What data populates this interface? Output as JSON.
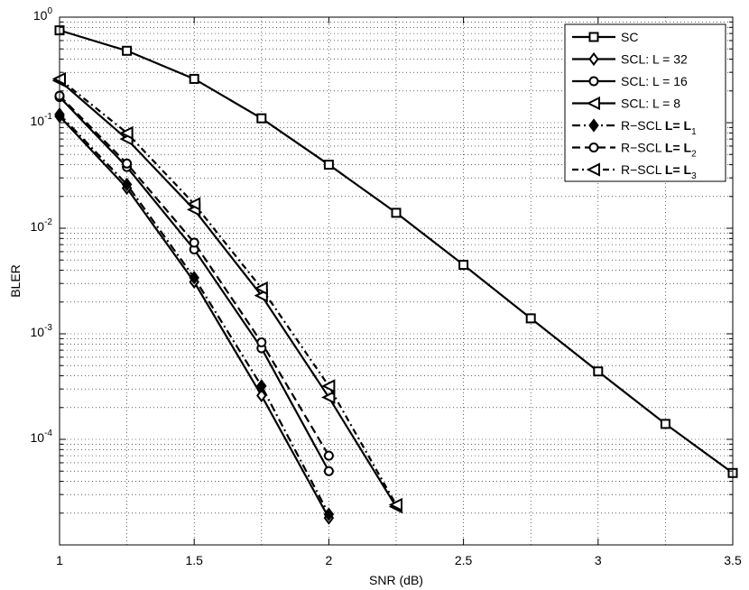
{
  "chart_data": {
    "type": "line",
    "xlabel": "SNR (dB)",
    "ylabel": "BLER",
    "xlim": [
      1,
      3.5
    ],
    "ylim": [
      1e-05,
      1
    ],
    "yscale": "log",
    "grid": true,
    "legend_position": "top-right",
    "xticks": [
      1,
      1.5,
      2,
      2.5,
      3,
      3.5
    ],
    "xtick_labels": [
      "1",
      "1.5",
      "2",
      "2.5",
      "3",
      "3.5"
    ],
    "yticks": [
      {
        "value": 1,
        "base": "10",
        "exp": "0"
      },
      {
        "value": 0.1,
        "base": "10",
        "exp": "-1"
      },
      {
        "value": 0.01,
        "base": "10",
        "exp": "-2"
      },
      {
        "value": 0.001,
        "base": "10",
        "exp": "-3"
      },
      {
        "value": 0.0001,
        "base": "10",
        "exp": "-4"
      }
    ],
    "series": [
      {
        "name": "SC",
        "legend": {
          "text": "SC"
        },
        "marker": "square",
        "dash": "solid",
        "filled": false,
        "x": [
          1,
          1.25,
          1.5,
          1.75,
          2,
          2.25,
          2.5,
          2.75,
          3,
          3.25,
          3.5
        ],
        "y": [
          0.75,
          0.48,
          0.26,
          0.11,
          0.04,
          0.014,
          0.0045,
          0.0014,
          0.00044,
          0.00014,
          4.8e-05
        ]
      },
      {
        "name": "SCL: L = 32",
        "legend": {
          "text": "SCL: L = 32"
        },
        "marker": "diamond",
        "dash": "solid",
        "filled": false,
        "x": [
          1,
          1.25,
          1.5,
          1.75,
          2
        ],
        "y": [
          0.115,
          0.024,
          0.0031,
          0.00026,
          1.8e-05
        ]
      },
      {
        "name": "SCL: L = 16",
        "legend": {
          "text": "SCL: L = 16"
        },
        "marker": "circle",
        "dash": "solid",
        "filled": false,
        "x": [
          1,
          1.25,
          1.5,
          1.75,
          2
        ],
        "y": [
          0.175,
          0.038,
          0.0063,
          0.00073,
          5e-05
        ]
      },
      {
        "name": "SCL: L = 8",
        "legend": {
          "text": "SCL: L = 8"
        },
        "marker": "triangle-left",
        "dash": "solid",
        "filled": false,
        "x": [
          1,
          1.25,
          1.5,
          1.75,
          2,
          2.25
        ],
        "y": [
          0.25,
          0.07,
          0.015,
          0.0023,
          0.00025,
          2.3e-05
        ]
      },
      {
        "name": "R-SCL L=L1",
        "legend": {
          "prefix": "R−SCL",
          "eq": "L= ",
          "sym": "L",
          "sub": "1"
        },
        "marker": "diamond",
        "dash": "dashdot",
        "filled": true,
        "x": [
          1,
          1.25,
          1.5,
          1.75,
          2
        ],
        "y": [
          0.12,
          0.026,
          0.0034,
          0.00032,
          1.95e-05
        ]
      },
      {
        "name": "R-SCL L=L2",
        "legend": {
          "prefix": "R−SCL",
          "eq": "L= ",
          "sym": "L",
          "sub": "2"
        },
        "marker": "circle",
        "dash": "dashed",
        "filled": false,
        "x": [
          1,
          1.25,
          1.5,
          1.75,
          2
        ],
        "y": [
          0.18,
          0.041,
          0.0073,
          0.00083,
          7e-05
        ]
      },
      {
        "name": "R-SCL L=L3",
        "legend": {
          "prefix": "R−SCL",
          "eq": "L= ",
          "sym": "L",
          "sub": "3"
        },
        "marker": "triangle-left",
        "dash": "dashdot2",
        "filled": false,
        "x": [
          1,
          1.25,
          1.5,
          1.75,
          2,
          2.25
        ],
        "y": [
          0.26,
          0.08,
          0.017,
          0.0027,
          0.00032,
          2.4e-05
        ]
      }
    ]
  }
}
